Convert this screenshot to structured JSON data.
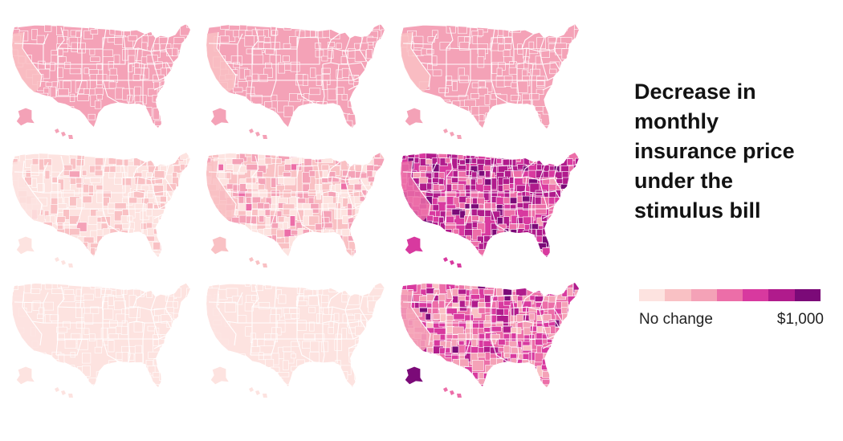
{
  "title": "Decrease in monthly insurance price under the stimulus bill",
  "legend": {
    "min_label": "No change",
    "max_label": "$1,000",
    "colors": [
      "#fde3e0",
      "#f9c1c4",
      "#f4a2b7",
      "#ec6ea8",
      "#d8399f",
      "#b01b8c",
      "#7b0a78"
    ]
  },
  "panels": [
    {
      "level": 2,
      "variation": 0.15,
      "seed": 11,
      "ca_level": 1
    },
    {
      "level": 2,
      "variation": 0.15,
      "seed": 23,
      "ca_level": 1
    },
    {
      "level": 2,
      "variation": 0.15,
      "seed": 37,
      "ca_level": 1
    },
    {
      "level": 0,
      "variation": 0.9,
      "seed": 41,
      "ca_level": 0
    },
    {
      "level": 1,
      "variation": 1.0,
      "seed": 53,
      "ca_level": 1
    },
    {
      "level": 4,
      "variation": 1.6,
      "seed": 67,
      "ca_level": 3
    },
    {
      "level": 0,
      "variation": 0.08,
      "seed": 71,
      "ca_level": 0
    },
    {
      "level": 0,
      "variation": 0.25,
      "seed": 83,
      "ca_level": 0
    },
    {
      "level": 3,
      "variation": 1.7,
      "seed": 97,
      "ca_level": 2
    }
  ]
}
